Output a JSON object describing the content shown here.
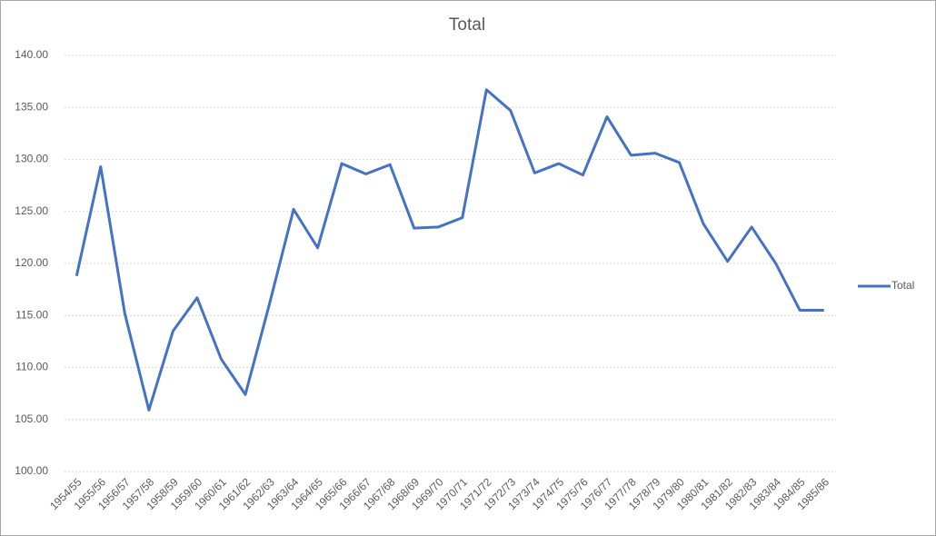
{
  "chart_data": {
    "type": "line",
    "title": "Total",
    "categories": [
      "1954/55",
      "1955/56",
      "1956/57",
      "1957/58",
      "1958/59",
      "1959/60",
      "1960/61",
      "1961/62",
      "1962/63",
      "1963/64",
      "1964/65",
      "1965/66",
      "1966/67",
      "1967/68",
      "1968/69",
      "1969/70",
      "1970/71",
      "1971/72",
      "1972/73",
      "1973/74",
      "1974/75",
      "1975/76",
      "1976/77",
      "1977/78",
      "1978/79",
      "1979/80",
      "1980/81",
      "1981/82",
      "1982/83",
      "1983/84",
      "1984/85",
      "1985/86"
    ],
    "series": [
      {
        "name": "Total",
        "color": "#4472c4",
        "values": [
          118.8,
          129.3,
          115.2,
          105.9,
          113.5,
          116.7,
          110.8,
          107.4,
          116.1,
          125.2,
          121.5,
          129.6,
          128.6,
          129.5,
          123.4,
          123.5,
          124.4,
          136.7,
          134.7,
          128.7,
          129.6,
          128.5,
          134.1,
          130.4,
          130.6,
          129.7,
          123.8,
          120.2,
          123.5,
          120.0,
          115.5,
          115.5
        ]
      }
    ],
    "ylim": [
      100,
      140
    ],
    "yticks": [
      {
        "value": 100,
        "label": "100.00"
      },
      {
        "value": 105,
        "label": "105.00"
      },
      {
        "value": 110,
        "label": "110.00"
      },
      {
        "value": 115,
        "label": "115.00"
      },
      {
        "value": 120,
        "label": "120.00"
      },
      {
        "value": 125,
        "label": "125.00"
      },
      {
        "value": 130,
        "label": "130.00"
      },
      {
        "value": 135,
        "label": "135.00"
      },
      {
        "value": 140,
        "label": "140.00"
      }
    ],
    "grid": true,
    "legend": "right"
  }
}
